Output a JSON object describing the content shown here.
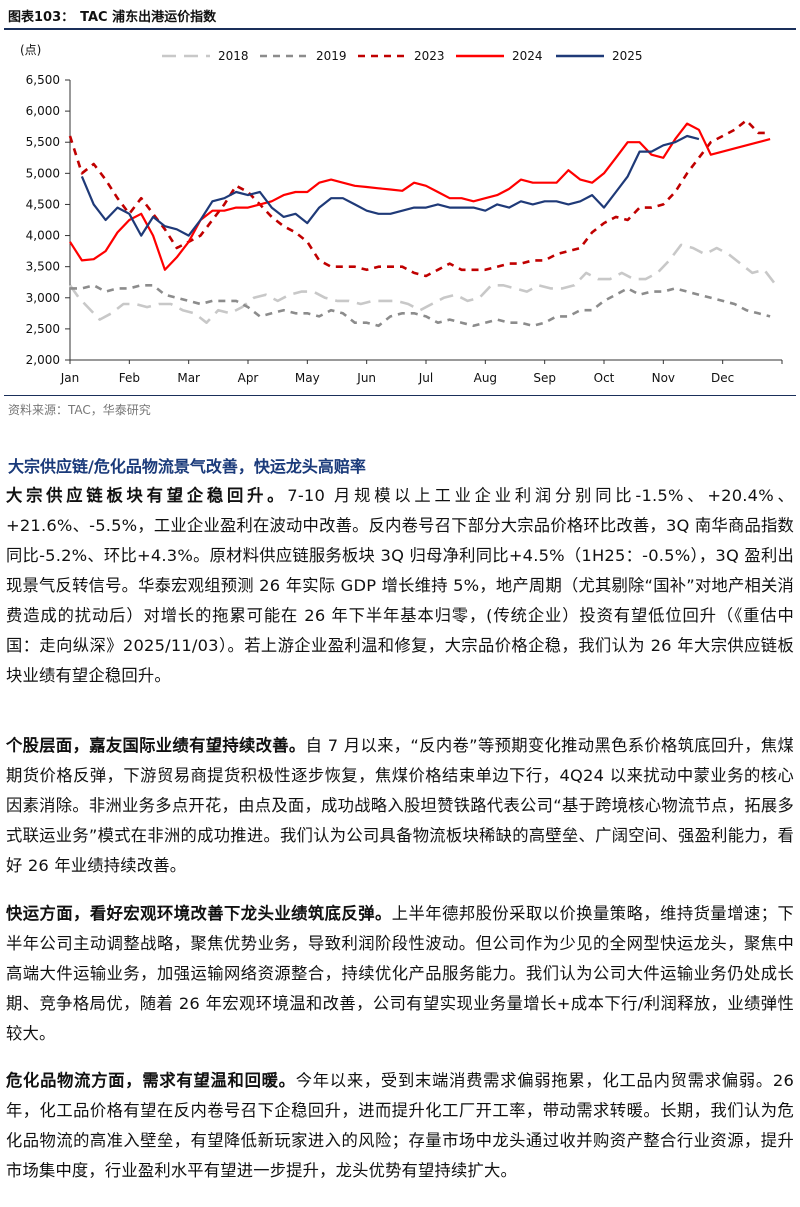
{
  "figure": {
    "label": "图表103：",
    "title": "TAC 浦东出港运价指数",
    "source": "资料来源：TAC，华泰研究"
  },
  "chart_data": {
    "type": "line",
    "title": "TAC 浦东出港运价指数",
    "ylabel": "(点)",
    "ylim": [
      2000,
      6500
    ],
    "yticks": [
      2000,
      2500,
      3000,
      3500,
      4000,
      4500,
      5000,
      5500,
      6000,
      6500
    ],
    "ytick_labels": [
      "2,000",
      "2,500",
      "3,000",
      "3,500",
      "4,000",
      "4,500",
      "5,000",
      "5,500",
      "6,000",
      "6,500"
    ],
    "xlim": [
      0,
      12
    ],
    "month_labels": [
      "Jan",
      "Feb",
      "Mar",
      "Apr",
      "May",
      "Jun",
      "Jul",
      "Aug",
      "Sep",
      "Oct",
      "Nov",
      "Dec"
    ],
    "legend_position": "top",
    "series": [
      {
        "name": "2018",
        "color": "#c8c8c8",
        "style": "dash-long",
        "x": [
          0,
          0.15,
          0.3,
          0.5,
          0.7,
          0.9,
          1.1,
          1.3,
          1.5,
          1.7,
          1.9,
          2.1,
          2.3,
          2.5,
          2.7,
          2.9,
          3.1,
          3.3,
          3.5,
          3.7,
          3.9,
          4.1,
          4.3,
          4.5,
          4.7,
          4.9,
          5.1,
          5.3,
          5.5,
          5.7,
          5.9,
          6.1,
          6.3,
          6.5,
          6.7,
          6.9,
          7.1,
          7.3,
          7.5,
          7.7,
          7.9,
          8.1,
          8.3,
          8.5,
          8.7,
          8.9,
          9.1,
          9.3,
          9.5,
          9.7,
          9.9,
          10.1,
          10.3,
          10.5,
          10.7,
          10.9,
          11.1,
          11.3,
          11.5,
          11.7,
          11.9
        ],
        "y": [
          3200,
          3000,
          2850,
          2650,
          2750,
          2900,
          2900,
          2850,
          2900,
          2900,
          2800,
          2750,
          2600,
          2800,
          2750,
          2850,
          3000,
          3050,
          2950,
          3050,
          3100,
          3100,
          3000,
          2950,
          2950,
          2900,
          2950,
          2950,
          2950,
          2900,
          2800,
          2900,
          3000,
          3050,
          2950,
          3000,
          3200,
          3200,
          3150,
          3100,
          3200,
          3150,
          3150,
          3200,
          3400,
          3300,
          3300,
          3400,
          3300,
          3300,
          3400,
          3600,
          3850,
          3800,
          3700,
          3800,
          3700,
          3550,
          3400,
          3450,
          3200
        ]
      },
      {
        "name": "2019",
        "color": "#8c8c8c",
        "style": "dash",
        "x": [
          0,
          0.2,
          0.4,
          0.6,
          0.8,
          1.0,
          1.2,
          1.4,
          1.6,
          1.8,
          2.0,
          2.2,
          2.4,
          2.6,
          2.8,
          3.0,
          3.2,
          3.4,
          3.6,
          3.8,
          4.0,
          4.2,
          4.4,
          4.6,
          4.8,
          5.0,
          5.2,
          5.4,
          5.6,
          5.8,
          6.0,
          6.2,
          6.4,
          6.6,
          6.8,
          7.0,
          7.2,
          7.4,
          7.6,
          7.8,
          8.0,
          8.2,
          8.4,
          8.6,
          8.8,
          9.0,
          9.2,
          9.4,
          9.6,
          9.8,
          10.0,
          10.2,
          10.4,
          10.6,
          10.8,
          11.0,
          11.2,
          11.4,
          11.6,
          11.8
        ],
        "y": [
          3150,
          3150,
          3200,
          3100,
          3150,
          3150,
          3200,
          3200,
          3050,
          3000,
          2950,
          2900,
          2950,
          2950,
          2950,
          2850,
          2700,
          2750,
          2800,
          2750,
          2750,
          2700,
          2800,
          2750,
          2600,
          2600,
          2550,
          2700,
          2750,
          2750,
          2700,
          2600,
          2650,
          2600,
          2550,
          2600,
          2650,
          2600,
          2600,
          2550,
          2600,
          2700,
          2700,
          2800,
          2800,
          2950,
          3050,
          3150,
          3050,
          3100,
          3100,
          3150,
          3100,
          3050,
          3000,
          2950,
          2900,
          2800,
          2750,
          2700
        ]
      },
      {
        "name": "2023",
        "color": "#c00000",
        "style": "dash",
        "x": [
          0,
          0.2,
          0.4,
          0.6,
          0.8,
          1.0,
          1.2,
          1.4,
          1.6,
          1.8,
          2.0,
          2.2,
          2.4,
          2.6,
          2.8,
          3.0,
          3.2,
          3.4,
          3.6,
          3.8,
          4.0,
          4.2,
          4.4,
          4.6,
          4.8,
          5.0,
          5.2,
          5.4,
          5.6,
          5.8,
          6.0,
          6.2,
          6.4,
          6.6,
          6.8,
          7.0,
          7.2,
          7.4,
          7.6,
          7.8,
          8.0,
          8.2,
          8.4,
          8.6,
          8.8,
          9.0,
          9.2,
          9.4,
          9.6,
          9.8,
          10.0,
          10.2,
          10.4,
          10.6,
          10.8,
          11.0,
          11.2,
          11.4,
          11.6,
          11.8
        ],
        "y": [
          5600,
          5000,
          5150,
          4900,
          4600,
          4350,
          4600,
          4350,
          4100,
          3800,
          3900,
          4000,
          4250,
          4500,
          4800,
          4700,
          4500,
          4300,
          4150,
          4050,
          3900,
          3600,
          3500,
          3500,
          3500,
          3450,
          3500,
          3500,
          3500,
          3400,
          3350,
          3450,
          3550,
          3450,
          3450,
          3450,
          3500,
          3550,
          3550,
          3600,
          3600,
          3700,
          3750,
          3800,
          4050,
          4200,
          4300,
          4250,
          4450,
          4450,
          4500,
          4700,
          5000,
          5250,
          5500,
          5600,
          5700,
          5850,
          5650,
          5650
        ]
      },
      {
        "name": "2024",
        "color": "#ff0000",
        "style": "solid",
        "x": [
          0,
          0.2,
          0.4,
          0.6,
          0.8,
          1.0,
          1.2,
          1.4,
          1.6,
          1.8,
          2.0,
          2.2,
          2.4,
          2.6,
          2.8,
          3.0,
          3.2,
          3.4,
          3.6,
          3.8,
          4.0,
          4.2,
          4.4,
          4.6,
          4.8,
          5.0,
          5.2,
          5.4,
          5.6,
          5.8,
          6.0,
          6.2,
          6.4,
          6.6,
          6.8,
          7.0,
          7.2,
          7.4,
          7.6,
          7.8,
          8.0,
          8.2,
          8.4,
          8.6,
          8.8,
          9.0,
          9.2,
          9.4,
          9.6,
          9.8,
          10.0,
          10.2,
          10.4,
          10.6,
          10.8,
          11.0,
          11.2,
          11.4,
          11.6,
          11.8
        ],
        "y": [
          3900,
          3600,
          3620,
          3750,
          4050,
          4250,
          4350,
          4000,
          3450,
          3650,
          3900,
          4250,
          4400,
          4400,
          4450,
          4450,
          4500,
          4550,
          4650,
          4700,
          4700,
          4850,
          4900,
          4850,
          4800,
          4780,
          4760,
          4740,
          4720,
          4850,
          4800,
          4700,
          4600,
          4600,
          4550,
          4600,
          4650,
          4750,
          4900,
          4850,
          4850,
          4850,
          5050,
          4900,
          4850,
          5000,
          5250,
          5500,
          5500,
          5300,
          5250,
          5550,
          5800,
          5700,
          5300,
          5350,
          5400,
          5450,
          5500,
          5550
        ]
      },
      {
        "name": "2025",
        "color": "#1f3a78",
        "style": "solid",
        "x": [
          0.2,
          0.4,
          0.6,
          0.8,
          1.0,
          1.2,
          1.4,
          1.6,
          1.8,
          2.0,
          2.2,
          2.4,
          2.6,
          2.8,
          3.0,
          3.2,
          3.4,
          3.6,
          3.8,
          4.0,
          4.2,
          4.4,
          4.6,
          4.8,
          5.0,
          5.2,
          5.4,
          5.6,
          5.8,
          6.0,
          6.2,
          6.4,
          6.6,
          6.8,
          7.0,
          7.2,
          7.4,
          7.6,
          7.8,
          8.0,
          8.2,
          8.4,
          8.6,
          8.8,
          9.0,
          9.2,
          9.4,
          9.6,
          9.8,
          10.0,
          10.2,
          10.4,
          10.6
        ],
        "y": [
          4950,
          4500,
          4250,
          4450,
          4350,
          4000,
          4300,
          4150,
          4100,
          4000,
          4250,
          4550,
          4600,
          4700,
          4650,
          4700,
          4450,
          4300,
          4350,
          4200,
          4450,
          4600,
          4600,
          4500,
          4400,
          4350,
          4350,
          4400,
          4450,
          4450,
          4500,
          4450,
          4450,
          4450,
          4400,
          4500,
          4450,
          4550,
          4500,
          4550,
          4550,
          4500,
          4550,
          4650,
          4450,
          4700,
          4950,
          5350,
          5350,
          5450,
          5500,
          5600,
          5550
        ]
      }
    ]
  },
  "section": {
    "title": "大宗供应链/危化品物流景气改善，快运龙头高赔率"
  },
  "paragraphs": [
    {
      "lead": "大宗供应链板块有望企稳回升。",
      "body": "7-10 月规模以上工业企业利润分别同比-1.5%、+20.4%、+21.6%、-5.5%，工业企业盈利在波动中改善。反内卷号召下部分大宗品价格环比改善，3Q 南华商品指数同比-5.2%、环比+4.3%。原材料供应链服务板块 3Q 归母净利同比+4.5%（1H25：-0.5%），3Q 盈利出现景气反转信号。华泰宏观组预测 26 年实际 GDP 增长维持 5%，地产周期（尤其剔除“国补”对地产相关消费造成的扰动后）对增长的拖累可能在 26 年下半年基本归零，(传统企业）投资有望低位回升（《重估中国：走向纵深》2025/11/03）。若上游企业盈利温和修复，大宗品价格企稳，我们认为 26 年大宗供应链板块业绩有望企稳回升。"
    },
    {
      "lead": "个股层面，嘉友国际业绩有望持续改善。",
      "body": "自 7 月以来，“反内卷”等预期变化推动黑色系价格筑底回升，焦煤期货价格反弹，下游贸易商提货积极性逐步恢复，焦煤价格结束单边下行，4Q24 以来扰动中蒙业务的核心因素消除。非洲业务多点开花，由点及面，成功战略入股坦赞铁路代表公司“基于跨境核心物流节点，拓展多式联运业务”模式在非洲的成功推进。我们认为公司具备物流板块稀缺的高壁垒、广阔空间、强盈利能力，看好 26 年业绩持续改善。"
    },
    {
      "lead": "快运方面，看好宏观环境改善下龙头业绩筑底反弹。",
      "body": "上半年德邦股份采取以价换量策略，维持货量增速；下半年公司主动调整战略，聚焦优势业务，导致利润阶段性波动。但公司作为少见的全网型快运龙头，聚焦中高端大件运输业务，加强运输网络资源整合，持续优化产品服务能力。我们认为公司大件运输业务仍处成长期、竞争格局优，随着 26 年宏观环境温和改善，公司有望实现业务量增长+成本下行/利润释放，业绩弹性较大。"
    },
    {
      "lead": "危化品物流方面，需求有望温和回暖。",
      "body": "今年以来，受到末端消费需求偏弱拖累，化工品内贸需求偏弱。26 年，化工品价格有望在反内卷号召下企稳回升，进而提升化工厂开工率，带动需求转暖。长期，我们认为危化品物流的高准入壁垒，有望降低新玩家进入的风险；存量市场中龙头通过收并购资产整合行业资源，提升市场集中度，行业盈利水平有望进一步提升，龙头优势有望持续扩大。"
    }
  ]
}
